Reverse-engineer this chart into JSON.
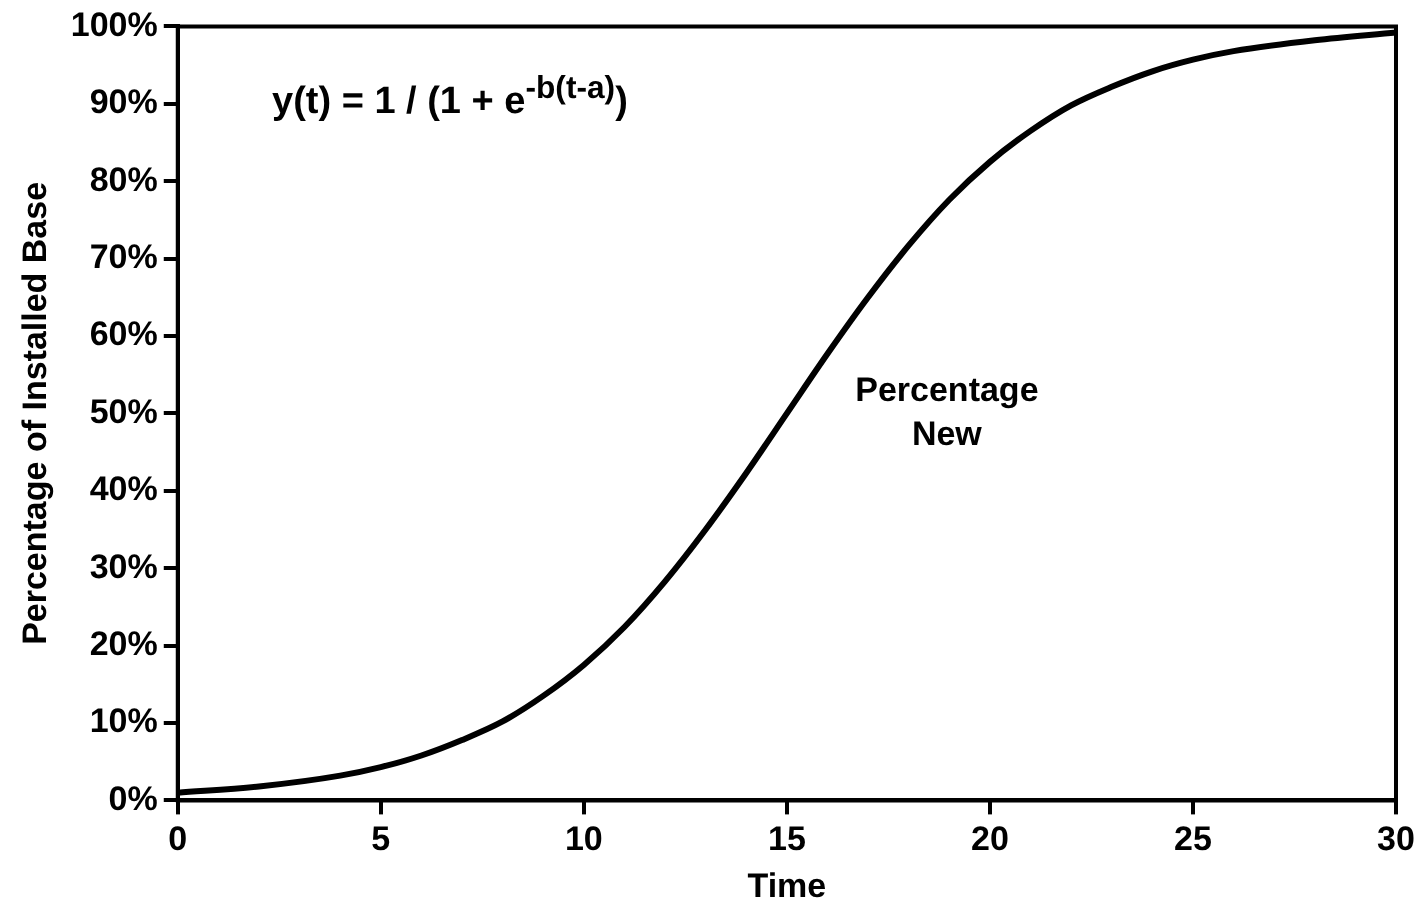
{
  "chart_data": {
    "type": "line",
    "xlabel": "Time",
    "ylabel": "Percentage of Installed Base",
    "annotations": [
      "y(t) = 1 / (1 + e$^{-b(t-a)}$)"
    ],
    "x": [
      0,
      2,
      4,
      5,
      6,
      7,
      8,
      9,
      10,
      11,
      12,
      13,
      14,
      15,
      16,
      17,
      18,
      19,
      20,
      21,
      22,
      23,
      24,
      25,
      26,
      28,
      30
    ],
    "series": [
      {
        "name": "Percentage New",
        "color": "#000000",
        "values": [
          1.0,
          1.8,
          3.2,
          4.3,
          5.8,
          7.8,
          10.2,
          13.5,
          17.5,
          22.4,
          28.3,
          35,
          42.3,
          50,
          57.7,
          65,
          71.7,
          77.6,
          82.5,
          86.5,
          89.8,
          92.2,
          94.2,
          95.7,
          96.8,
          98.2,
          99.2
        ]
      }
    ],
    "xlim": [
      0,
      30
    ],
    "xticks": [
      0,
      5,
      10,
      15,
      20,
      25,
      30
    ],
    "ylim": [
      0,
      100
    ],
    "yticks": [
      {
        "value": 0,
        "label": "0%"
      },
      {
        "value": 10,
        "label": "10%"
      },
      {
        "value": 20,
        "label": "20%"
      },
      {
        "value": 30,
        "label": "30%"
      },
      {
        "value": 40,
        "label": "40%"
      },
      {
        "value": 50,
        "label": "50%"
      },
      {
        "value": 60,
        "label": "60%"
      },
      {
        "value": 70,
        "label": "70%"
      },
      {
        "value": 80,
        "label": "80%"
      },
      {
        "value": 90,
        "label": "90%"
      },
      {
        "value": 100,
        "label": "100%"
      }
    ],
    "grid": false,
    "legend": false,
    "marker": "none",
    "line_style": "solid"
  }
}
